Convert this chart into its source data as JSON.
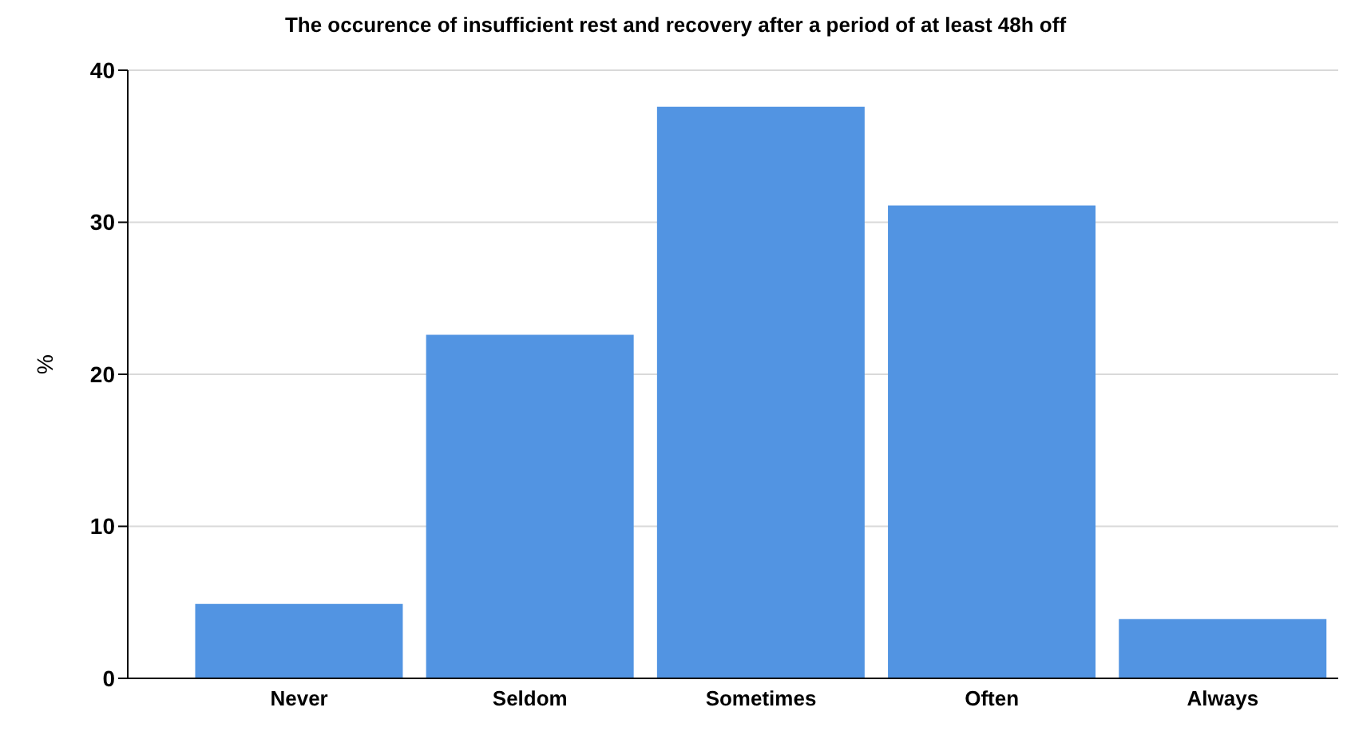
{
  "chart_data": {
    "type": "bar",
    "title": "The occurence of insufficient rest and recovery after a period of at least 48h off",
    "ylabel": "%",
    "categories": [
      "Never",
      "Seldom",
      "Sometimes",
      "Often",
      "Always"
    ],
    "values": [
      4.9,
      22.6,
      37.6,
      31.1,
      3.9
    ],
    "color": "#5294e2",
    "ylim": [
      0,
      40
    ],
    "yticks": [
      0,
      10,
      20,
      30,
      40
    ],
    "grid": "y"
  }
}
